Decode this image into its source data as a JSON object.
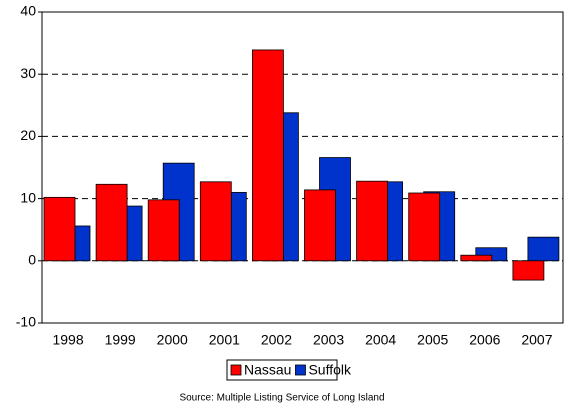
{
  "chart_data": {
    "type": "bar",
    "categories": [
      "1998",
      "1999",
      "2000",
      "2001",
      "2002",
      "2003",
      "2004",
      "2005",
      "2006",
      "2007"
    ],
    "series": [
      {
        "name": "Nassau",
        "color": "#ff0000",
        "values": [
          10.2,
          12.3,
          9.8,
          12.7,
          33.9,
          11.4,
          12.8,
          10.9,
          0.9,
          -3.1
        ]
      },
      {
        "name": "Suffolk",
        "color": "#0033cc",
        "values": [
          5.6,
          8.8,
          15.7,
          11.0,
          23.8,
          16.6,
          12.7,
          11.1,
          2.1,
          3.8
        ]
      }
    ],
    "ylim": [
      -10,
      40
    ],
    "yticks": [
      -10,
      0,
      10,
      20,
      30,
      40
    ],
    "grid": true,
    "source": "Source:  Multiple Listing Service of Long Island"
  }
}
